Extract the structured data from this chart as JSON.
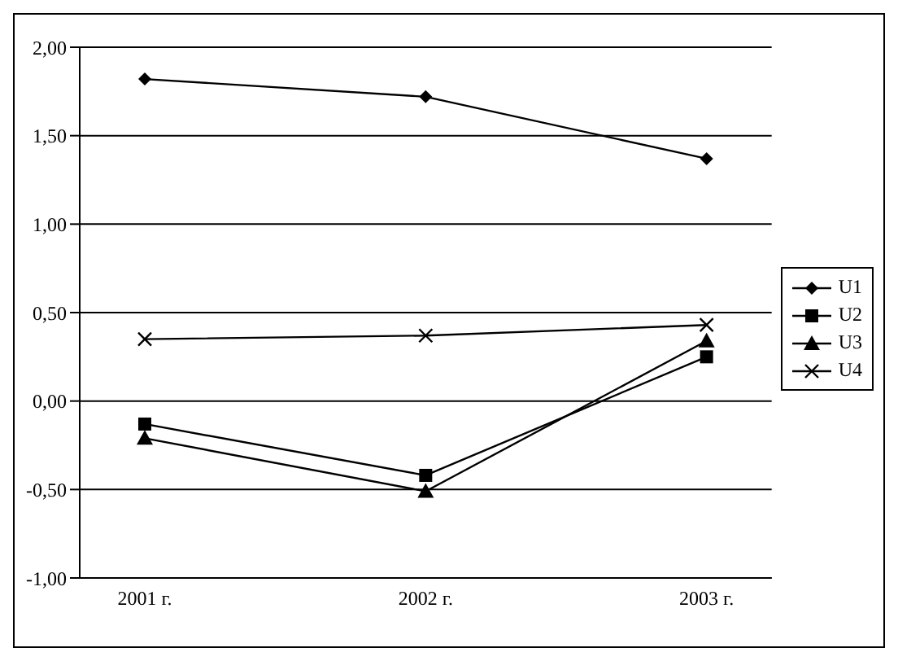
{
  "chart_data": {
    "type": "line",
    "categories": [
      "2001 г.",
      "2002 г.",
      "2003 г."
    ],
    "series": [
      {
        "name": "U1",
        "color": "#000000",
        "marker": "diamond",
        "values": [
          1.82,
          1.72,
          1.37
        ]
      },
      {
        "name": "U2",
        "color": "#000000",
        "marker": "square",
        "values": [
          -0.13,
          -0.42,
          0.25
        ]
      },
      {
        "name": "U3",
        "color": "#000000",
        "marker": "triangle",
        "values": [
          -0.21,
          -0.51,
          0.34
        ]
      },
      {
        "name": "U4",
        "color": "#000000",
        "marker": "cross",
        "values": [
          0.35,
          0.37,
          0.43
        ]
      }
    ],
    "ylim": [
      -1,
      2
    ],
    "yticks": [
      {
        "value": -1,
        "label": "-1,00"
      },
      {
        "value": -0.5,
        "label": "-0,50"
      },
      {
        "value": 0,
        "label": "0,00"
      },
      {
        "value": 0.5,
        "label": "0,50"
      },
      {
        "value": 1,
        "label": "1,00"
      },
      {
        "value": 1.5,
        "label": "1,50"
      },
      {
        "value": 2,
        "label": "2,00"
      }
    ],
    "grid": "y",
    "legend": "right",
    "line_style": "solid"
  }
}
